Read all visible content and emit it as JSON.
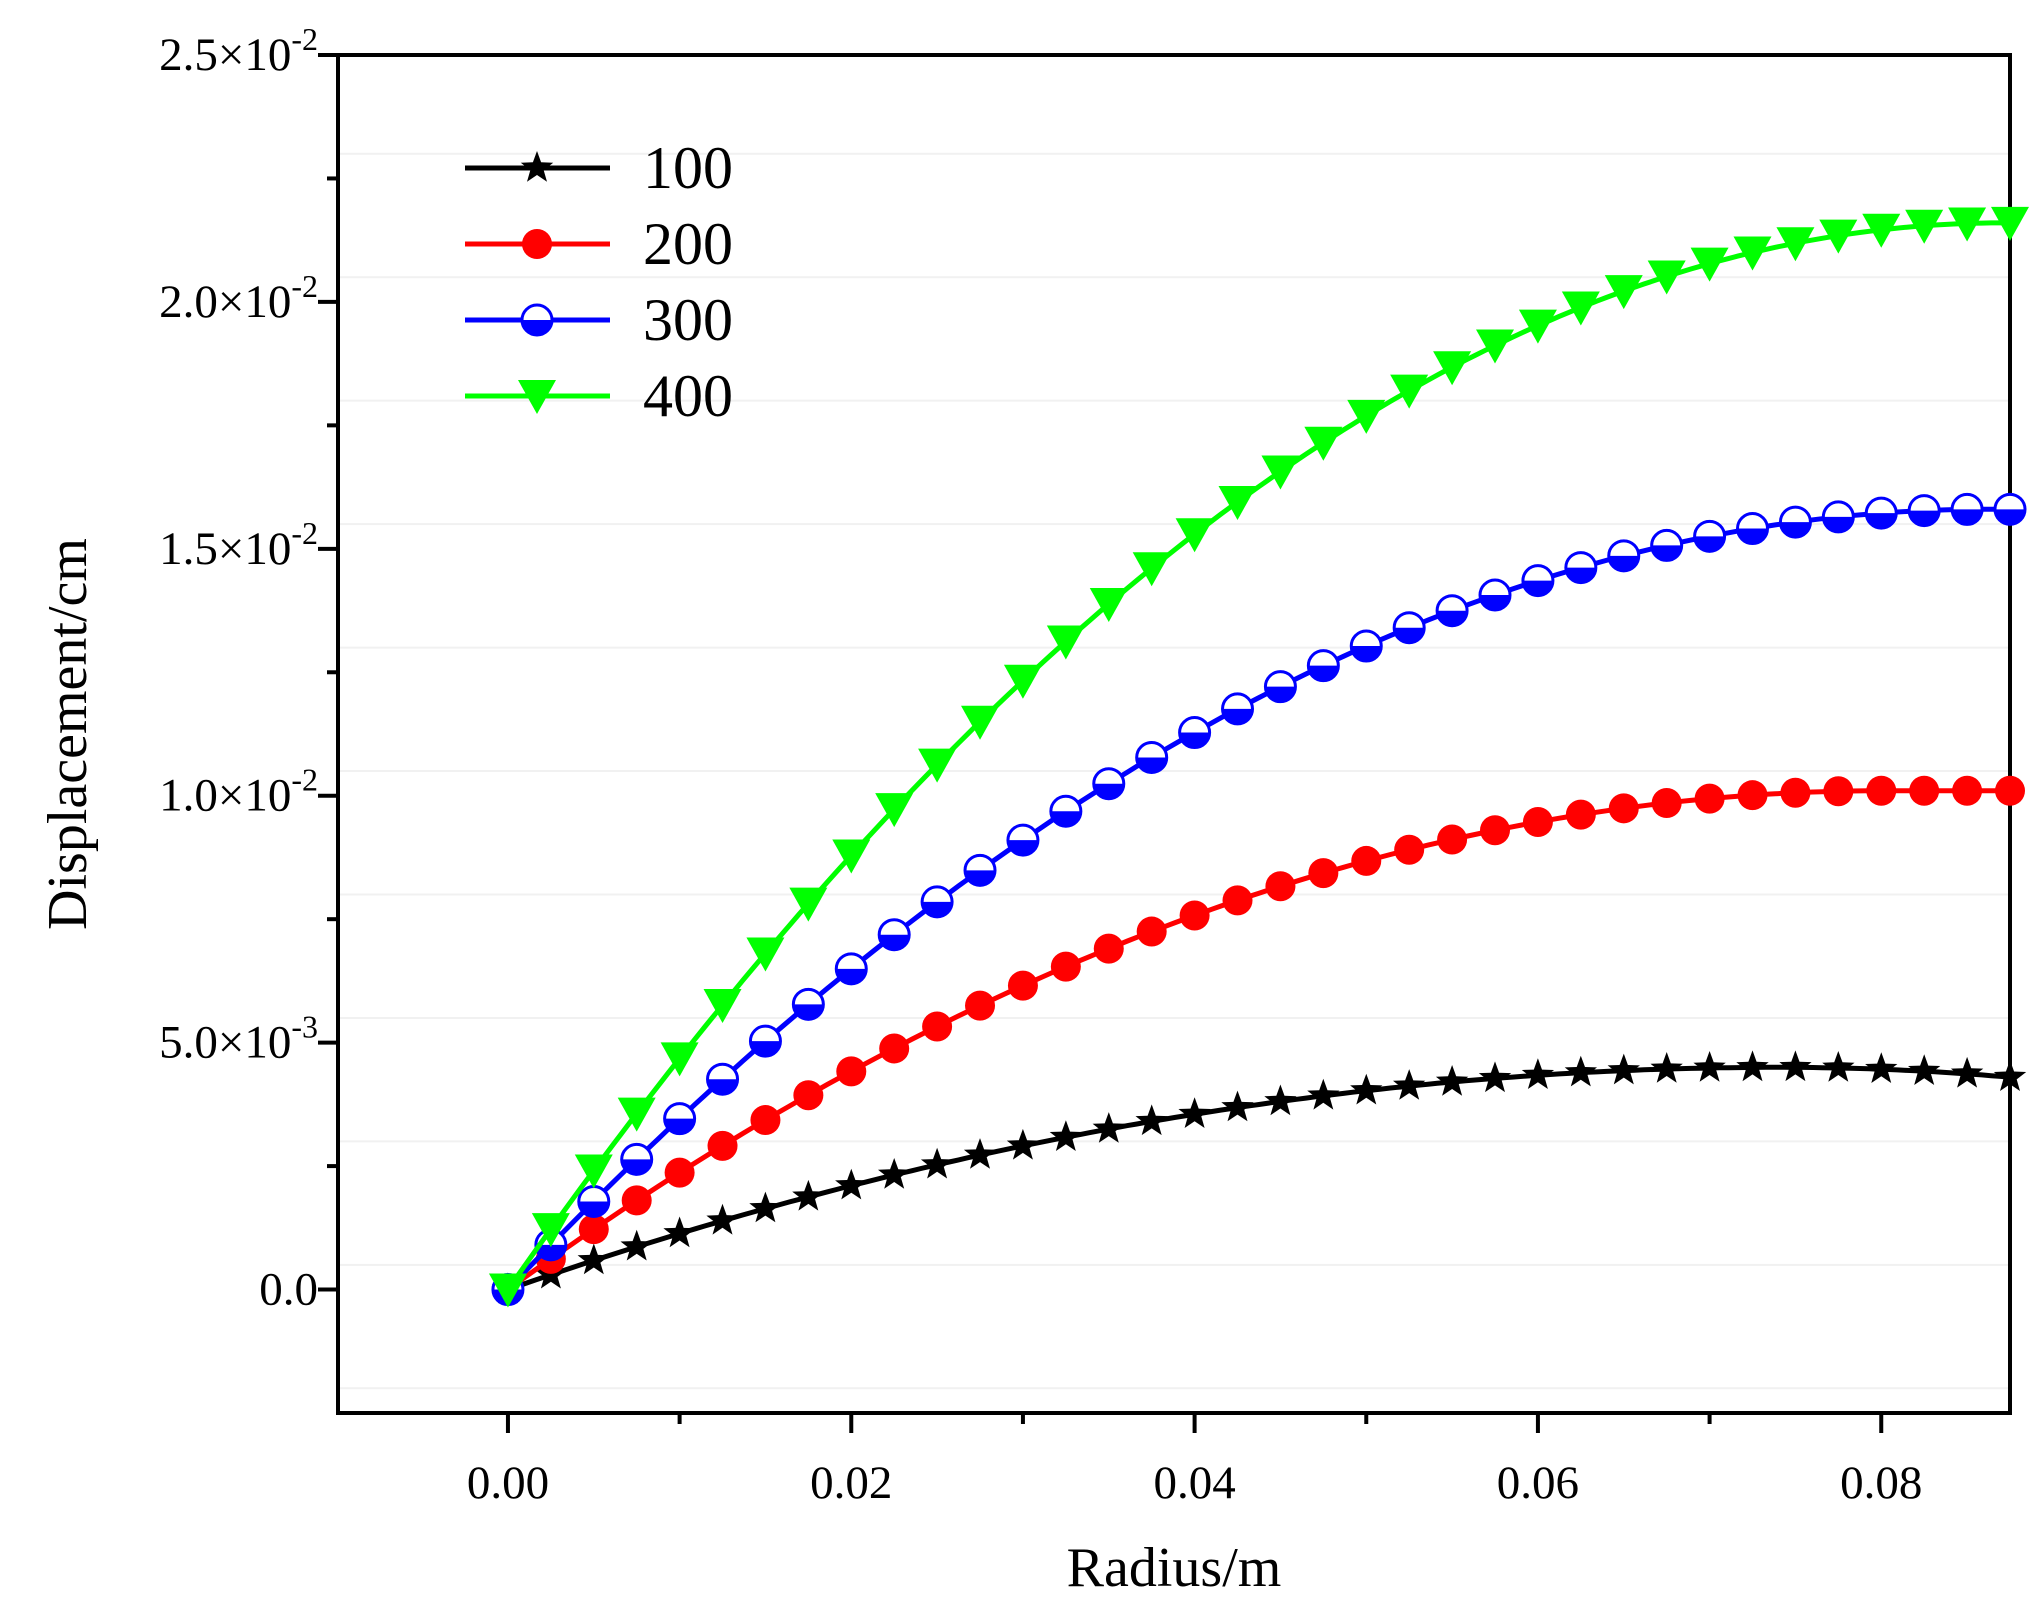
{
  "chart_data": {
    "type": "line",
    "xlabel": "Radius/m",
    "ylabel": "Displacement/cm",
    "xlim": [
      -0.0099,
      0.0875
    ],
    "ylim": [
      -0.0025,
      0.025
    ],
    "x_ticks": [
      0.0,
      0.02,
      0.04,
      0.06,
      0.08
    ],
    "x_tick_labels": [
      "0.00",
      "0.02",
      "0.04",
      "0.06",
      "0.08"
    ],
    "y_ticks": [
      0.0,
      0.005,
      0.01,
      0.015,
      0.02,
      0.025
    ],
    "y_tick_labels": [
      {
        "mantissa": "0.0",
        "exponent": ""
      },
      {
        "mantissa": "5.0×10",
        "exponent": "-3"
      },
      {
        "mantissa": "1.0×10",
        "exponent": "-2"
      },
      {
        "mantissa": "1.5×10",
        "exponent": "-2"
      },
      {
        "mantissa": "2.0×10",
        "exponent": "-2"
      },
      {
        "mantissa": "2.5×10",
        "exponent": "-2"
      }
    ],
    "legend_position": "top-left",
    "series": [
      {
        "name": "100",
        "color": "#000000",
        "marker": "star",
        "peak": 0.0045,
        "peak_x": 0.074,
        "end": 0.0043
      },
      {
        "name": "200",
        "color": "#ff0000",
        "marker": "circle",
        "peak": 0.0101,
        "peak_x": 0.08,
        "end": 0.0101
      },
      {
        "name": "300",
        "color": "#0000ff",
        "marker": "half-circle",
        "peak": 0.0158,
        "peak_x": 0.086,
        "end": 0.0158
      },
      {
        "name": "400",
        "color": "#00ff00",
        "marker": "triangle-down",
        "peak": 0.0216,
        "peak_x": 0.087,
        "end": 0.0216
      }
    ],
    "x_samples": {
      "start": 0.0,
      "step": 0.0025,
      "count": 36,
      "line_end": 0.0875
    }
  }
}
